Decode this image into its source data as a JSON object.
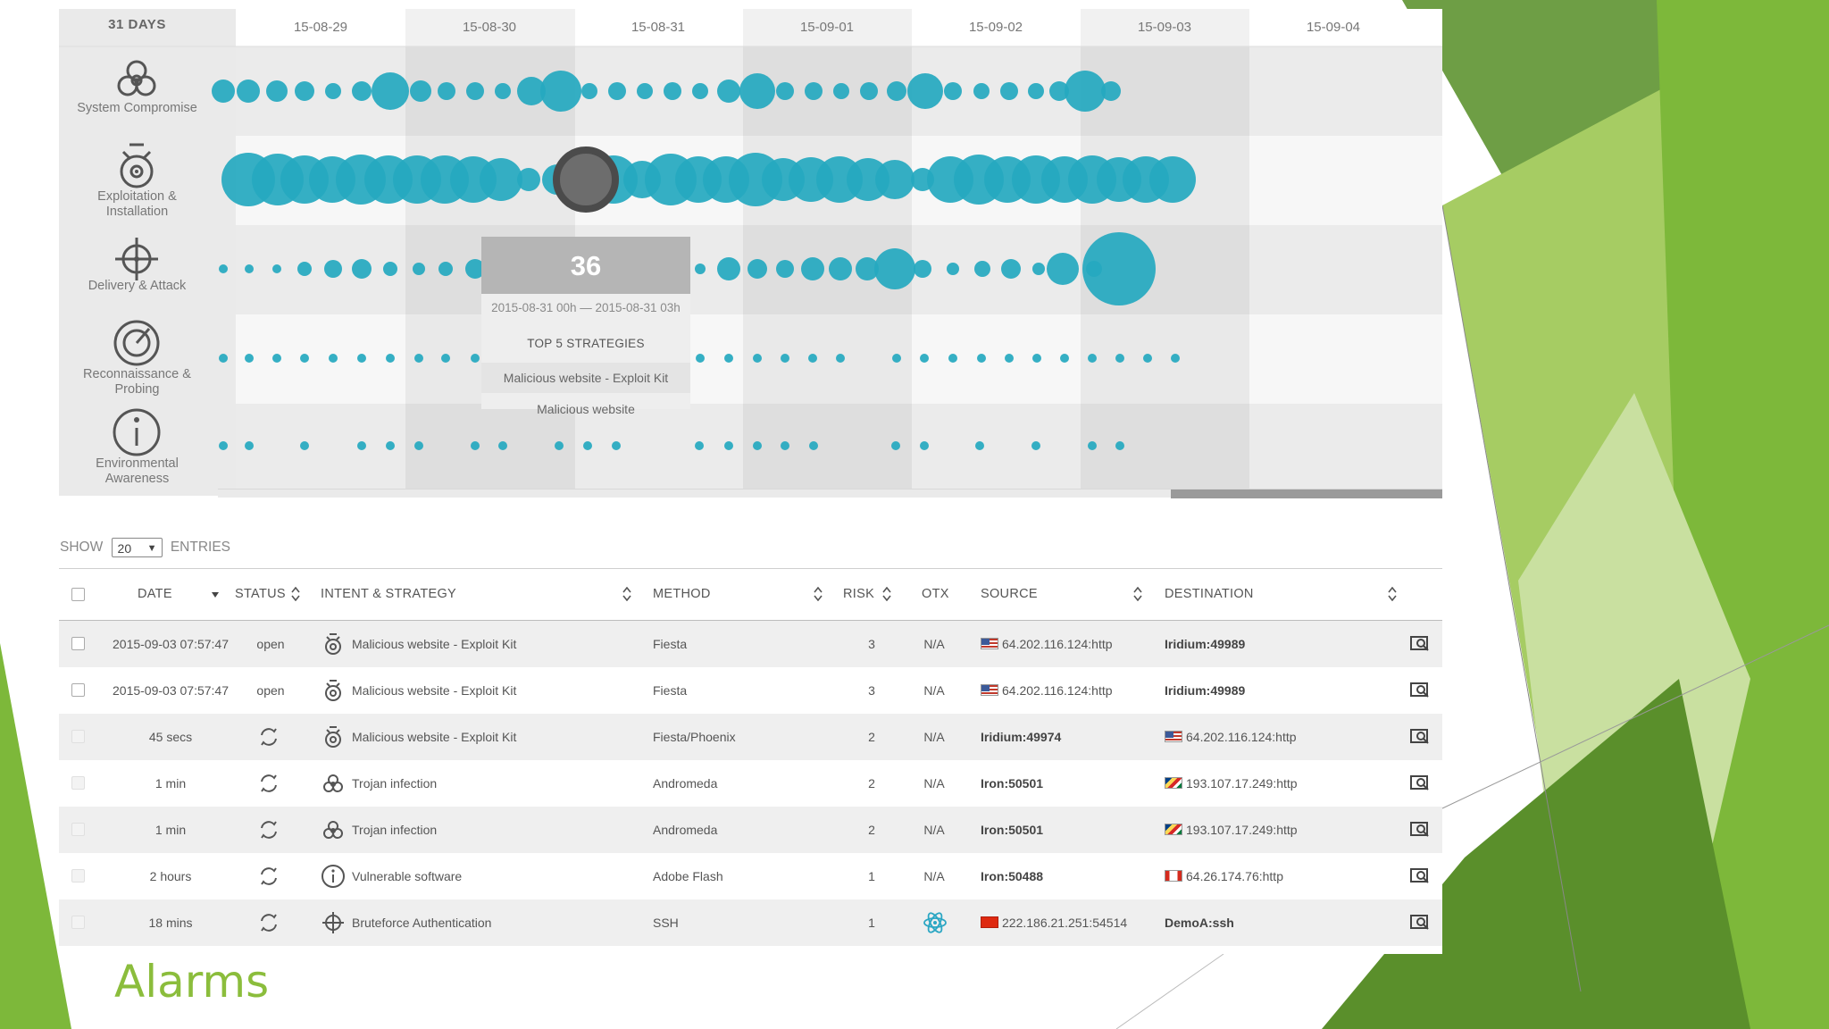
{
  "colors": {
    "accent_dot": "#26a9c0",
    "grey_band": "#ebebeb",
    "green_dark": "#5a8f2b",
    "green_mid": "#7db83a",
    "green_light": "#a6cc63",
    "title_green": "#8bbd3c"
  },
  "timeline": {
    "range_label": "31 DAYS",
    "dates": [
      "15-08-29",
      "15-08-30",
      "15-08-31",
      "15-09-01",
      "15-09-02",
      "15-09-03",
      "15-09-04"
    ],
    "rows": [
      {
        "label_line1": "System Compromise",
        "label_line2": "",
        "icon": "biohazard-icon"
      },
      {
        "label_line1": "Exploitation &",
        "label_line2": "Installation",
        "icon": "bomb-icon"
      },
      {
        "label_line1": "Delivery & Attack",
        "label_line2": "",
        "icon": "crosshair-icon"
      },
      {
        "label_line1": "Reconnaissance &",
        "label_line2": "Probing",
        "icon": "radar-icon"
      },
      {
        "label_line1": "Environmental",
        "label_line2": "Awareness",
        "icon": "info-icon"
      }
    ],
    "tooltip": {
      "count": "36",
      "range": "2015-08-31 00h — 2015-08-31 03h",
      "top_label": "TOP 5 STRATEGIES",
      "items": [
        "Malicious website - Exploit Kit",
        "Malicious website"
      ]
    }
  },
  "entries": {
    "show_label": "SHOW",
    "value": "20",
    "entries_label": "ENTRIES"
  },
  "table": {
    "columns": {
      "date": "DATE",
      "status": "STATUS",
      "intent": "INTENT & STRATEGY",
      "method": "METHOD",
      "risk": "RISK",
      "otx": "OTX",
      "source": "SOURCE",
      "destination": "DESTINATION"
    },
    "rows": [
      {
        "date": "2015-09-03 07:57:47",
        "status": "open",
        "status_icon": "",
        "intent_icon": "bomb-icon",
        "intent": "Malicious website - Exploit Kit",
        "method": "Fiesta",
        "risk": "3",
        "otx": "N/A",
        "source": "64.202.116.124:http",
        "source_flag": "us",
        "destination": "Iridium:49989",
        "dest_flag": ""
      },
      {
        "date": "2015-09-03 07:57:47",
        "status": "open",
        "status_icon": "",
        "intent_icon": "bomb-icon",
        "intent": "Malicious website - Exploit Kit",
        "method": "Fiesta",
        "risk": "3",
        "otx": "N/A",
        "source": "64.202.116.124:http",
        "source_flag": "us",
        "destination": "Iridium:49989",
        "dest_flag": ""
      },
      {
        "date": "45 secs",
        "status": "",
        "status_icon": "refresh-icon",
        "intent_icon": "bomb-icon",
        "intent": "Malicious website - Exploit Kit",
        "method": "Fiesta/Phoenix",
        "risk": "2",
        "otx": "N/A",
        "source": "Iridium:49974",
        "source_flag": "",
        "destination": "64.202.116.124:http",
        "dest_flag": "us"
      },
      {
        "date": "1 min",
        "status": "",
        "status_icon": "refresh-icon",
        "intent_icon": "biohazard-icon",
        "intent": "Trojan infection",
        "method": "Andromeda",
        "risk": "2",
        "otx": "N/A",
        "source": "Iron:50501",
        "source_flag": "",
        "destination": "193.107.17.249:http",
        "dest_flag": "sc"
      },
      {
        "date": "1 min",
        "status": "",
        "status_icon": "refresh-icon",
        "intent_icon": "biohazard-icon",
        "intent": "Trojan infection",
        "method": "Andromeda",
        "risk": "2",
        "otx": "N/A",
        "source": "Iron:50501",
        "source_flag": "",
        "destination": "193.107.17.249:http",
        "dest_flag": "sc"
      },
      {
        "date": "2 hours",
        "status": "",
        "status_icon": "refresh-icon",
        "intent_icon": "info-icon",
        "intent": "Vulnerable software",
        "method": "Adobe Flash",
        "risk": "1",
        "otx": "N/A",
        "source": "Iron:50488",
        "source_flag": "",
        "destination": "64.26.174.76:http",
        "dest_flag": "ca"
      },
      {
        "date": "18 mins",
        "status": "",
        "status_icon": "refresh-icon",
        "intent_icon": "crosshair-icon",
        "intent": "Bruteforce Authentication",
        "method": "SSH",
        "risk": "1",
        "otx": "atom-icon",
        "source": "222.186.21.251:54514",
        "source_flag": "cn",
        "destination": "DemoA:ssh",
        "dest_flag": ""
      }
    ]
  },
  "slide_title": "Alarms"
}
